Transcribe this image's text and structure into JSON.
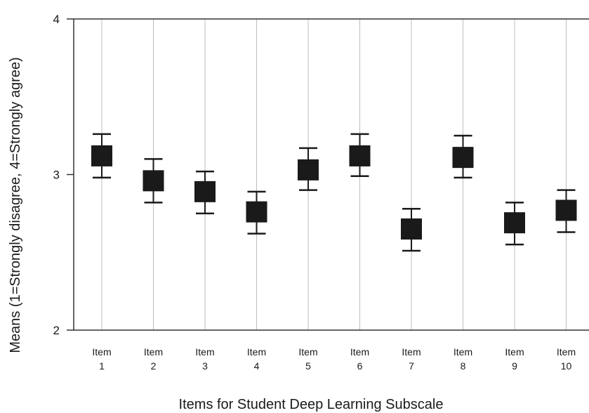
{
  "chart_data": {
    "type": "scatter",
    "title": "",
    "xlabel": "Items for Student Deep Learning Subscale",
    "ylabel": "Means (1=Strongly disagree, 4=Strongly agree)",
    "ylim": [
      2,
      4
    ],
    "yticks": [
      "2",
      "3",
      "4"
    ],
    "grid": "vertical",
    "categories": [
      {
        "line1": "Item",
        "line2": "1"
      },
      {
        "line1": "Item",
        "line2": "2"
      },
      {
        "line1": "Item",
        "line2": "3"
      },
      {
        "line1": "Item",
        "line2": "4"
      },
      {
        "line1": "Item",
        "line2": "5"
      },
      {
        "line1": "Item",
        "line2": "6"
      },
      {
        "line1": "Item",
        "line2": "7"
      },
      {
        "line1": "Item",
        "line2": "8"
      },
      {
        "line1": "Item",
        "line2": "9"
      },
      {
        "line1": "Item",
        "line2": "10"
      }
    ],
    "means": [
      3.12,
      2.96,
      2.89,
      2.76,
      3.03,
      3.12,
      2.65,
      3.11,
      2.69,
      2.77
    ],
    "upper": [
      3.26,
      3.1,
      3.02,
      2.89,
      3.17,
      3.26,
      2.78,
      3.25,
      2.82,
      2.9
    ],
    "lower": [
      2.98,
      2.82,
      2.75,
      2.62,
      2.9,
      2.99,
      2.51,
      2.98,
      2.55,
      2.63
    ],
    "marker_color": "#1a1a1a",
    "grid_color": "#bdbdbd"
  }
}
